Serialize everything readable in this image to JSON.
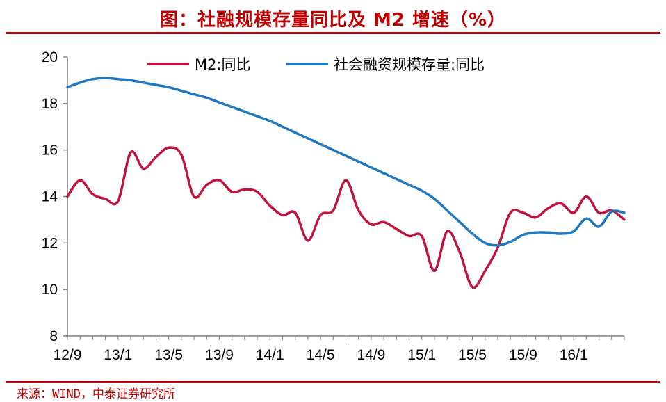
{
  "title": "图：社融规模存量同比及 M2 增速（%）",
  "source": "来源：WIND，中泰证券研究所",
  "colors": {
    "m2": "#c0143c",
    "tsf": "#1f78c0",
    "title": "#c00000",
    "axis": "#808080"
  },
  "chart_data": {
    "type": "line",
    "title": "图：社融规模存量同比及 M2 增速（%）",
    "xlabel": "",
    "ylabel": "",
    "ylim": [
      8,
      20
    ],
    "yticks": [
      8,
      10,
      12,
      14,
      16,
      18,
      20
    ],
    "xtick_labels": [
      "12/9",
      "13/1",
      "13/5",
      "13/9",
      "14/1",
      "14/5",
      "14/9",
      "15/1",
      "15/5",
      "15/9",
      "16/1"
    ],
    "x_period_start": "2012-09",
    "grid": false,
    "legend_position": "top",
    "series": [
      {
        "name": "M2:同比",
        "color_key": "m2",
        "values": [
          14.0,
          14.7,
          14.1,
          13.9,
          13.8,
          15.9,
          15.2,
          15.7,
          16.1,
          15.8,
          14.0,
          14.5,
          14.7,
          14.2,
          14.3,
          14.2,
          13.6,
          13.2,
          13.3,
          12.1,
          13.2,
          13.4,
          14.7,
          13.4,
          12.8,
          12.9,
          12.6,
          12.3,
          12.3,
          10.8,
          12.5,
          11.6,
          10.1,
          10.8,
          11.8,
          13.3,
          13.3,
          13.1,
          13.5,
          13.7,
          13.3,
          14.0,
          13.3,
          13.4,
          13.0
        ],
        "note": "monthly, Sep 2012 onward"
      },
      {
        "name": "社会融资规模存量:同比",
        "color_key": "tsf",
        "values": [
          18.7,
          18.9,
          19.05,
          19.1,
          19.05,
          19.0,
          18.9,
          18.8,
          18.7,
          18.55,
          18.4,
          18.25,
          18.05,
          17.85,
          17.65,
          17.45,
          17.25,
          17.0,
          16.75,
          16.5,
          16.25,
          16.0,
          15.75,
          15.5,
          15.25,
          15.0,
          14.75,
          14.5,
          14.25,
          13.9,
          13.4,
          12.9,
          12.4,
          12.0,
          11.9,
          12.05,
          12.35,
          12.45,
          12.45,
          12.4,
          12.5,
          13.05,
          12.7,
          13.35,
          13.3
        ],
        "note": "monthly, Sep 2012 onward"
      }
    ]
  }
}
